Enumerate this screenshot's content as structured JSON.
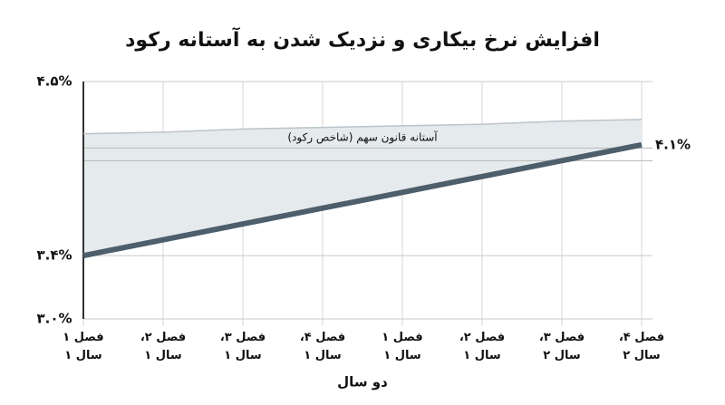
{
  "chart_data": {
    "type": "line",
    "title": "افزایش نرخ بیکاری و نزدیک شدن به آستانه رکود",
    "x_label": "دو سال",
    "categories": [
      [
        "فصل ۱",
        "سال ۱"
      ],
      [
        "فصل ۲،",
        "سال ۱"
      ],
      [
        "فصل ۳،",
        "سال ۱"
      ],
      [
        "فصل ۴،",
        "سال ۱"
      ],
      [
        "فصل ۱",
        "سال ۱"
      ],
      [
        "فصل ۲،",
        "سال ۱"
      ],
      [
        "فصل ۳،",
        "سال ۲"
      ],
      [
        "فصل ۴،",
        "سال ۲"
      ]
    ],
    "series": [
      {
        "color": "#4d5f6b",
        "values": [
          3.4,
          3.5,
          3.6,
          3.7,
          3.8,
          3.9,
          4.0,
          4.1
        ],
        "value_labels": [
          null,
          null,
          null,
          null,
          null,
          null,
          null,
          "۴.۱%"
        ]
      },
      {
        "color": "#b9c4cb",
        "fill": "#e5eaed",
        "values": [
          4.17,
          4.18,
          4.2,
          4.21,
          4.22,
          4.23,
          4.25,
          4.26
        ]
      }
    ],
    "annotation": "آستانه قانون سهم (شاخص رکود)",
    "reference_lines": [
      4.08,
      4.0
    ],
    "ylim": [
      3.0,
      4.5
    ],
    "yticks": [
      {
        "value": 4.5,
        "label": "۴.۵%"
      },
      {
        "value": 3.4,
        "label": "۳.۴%"
      },
      {
        "value": 3.0,
        "label": "۳.۰%"
      }
    ],
    "grid": true
  }
}
